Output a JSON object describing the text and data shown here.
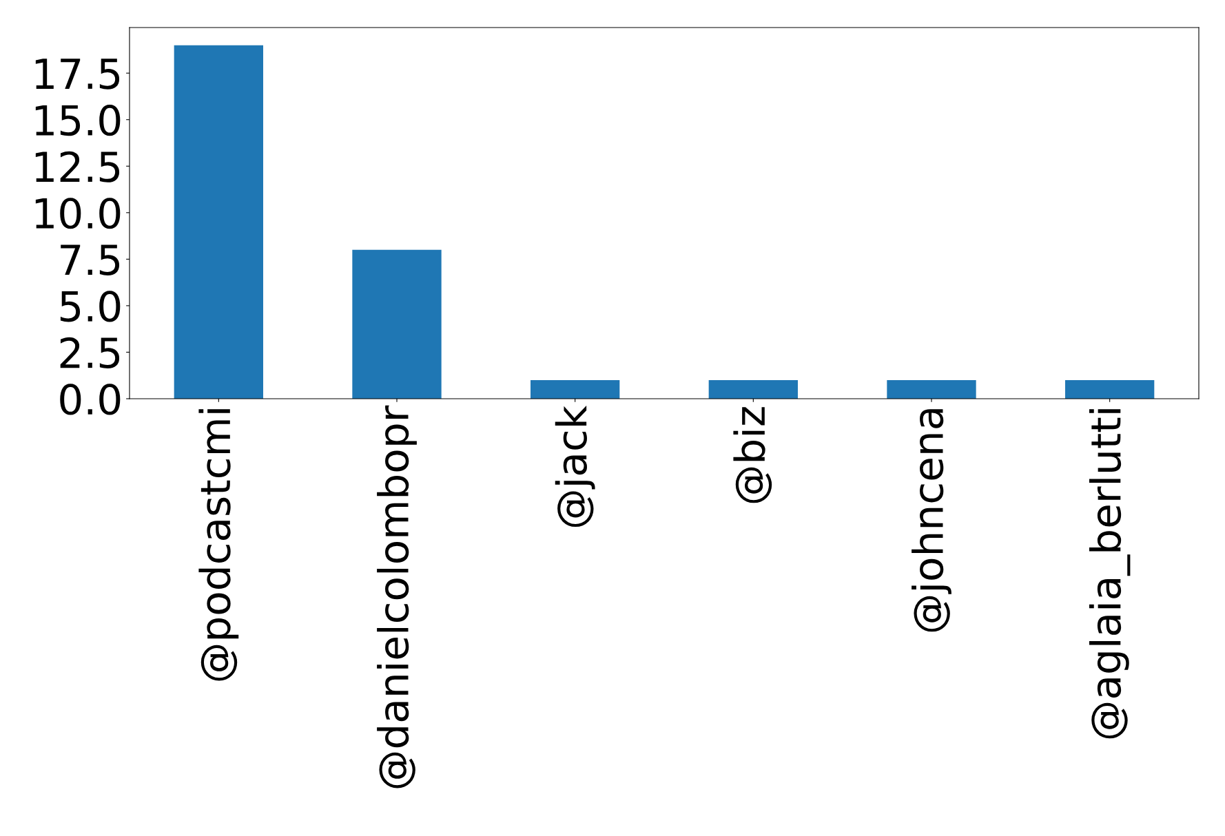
{
  "chart_data": {
    "type": "bar",
    "categories": [
      "@podcastcmi",
      "@danielcolombopr",
      "@jack",
      "@biz",
      "@johncena",
      "@aglaia_berlutti"
    ],
    "values": [
      19,
      8,
      1,
      1,
      1,
      1
    ],
    "color": "#1f77b4",
    "ylim": [
      0,
      19.95
    ],
    "yticks": [
      {
        "value": 0,
        "label": "0.0"
      },
      2.5,
      {
        "value": 5,
        "label": "5.0"
      },
      7.5,
      {
        "value": 10,
        "label": "10.0"
      },
      12.5,
      {
        "value": 15,
        "label": "15.0"
      },
      17.5
    ],
    "grid": false
  }
}
